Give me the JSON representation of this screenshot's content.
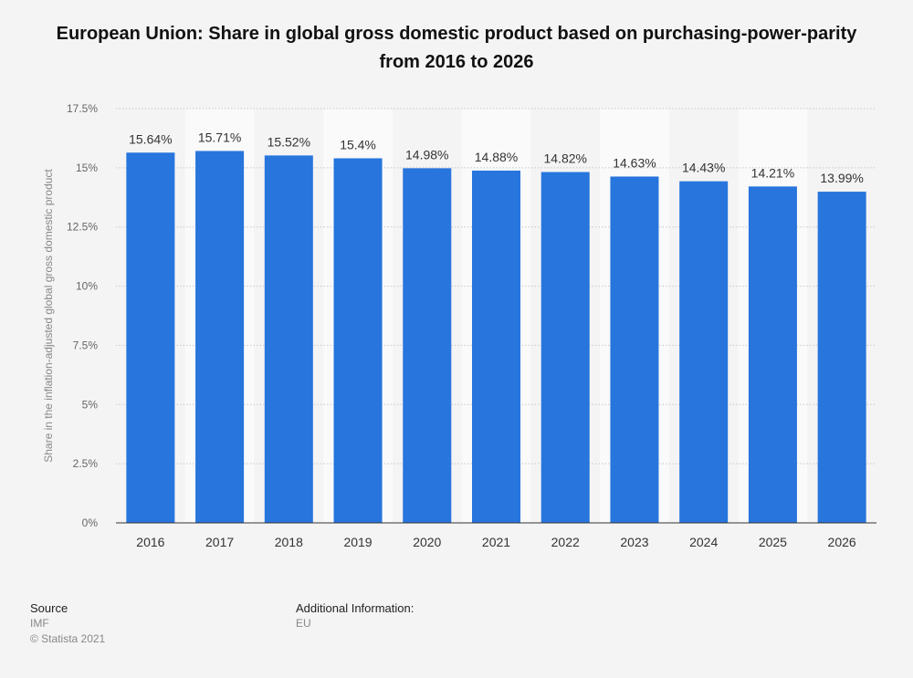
{
  "chart_data": {
    "type": "bar",
    "title": "European Union: Share in global gross domestic product based on purchasing-power-parity from 2016 to 2026",
    "ylabel": "Share in the inflation-adjusted global gross domestic product",
    "xlabel": "",
    "categories": [
      "2016",
      "2017",
      "2018",
      "2019",
      "2020",
      "2021",
      "2022",
      "2023",
      "2024",
      "2025",
      "2026"
    ],
    "values": [
      15.64,
      15.71,
      15.52,
      15.4,
      14.98,
      14.88,
      14.82,
      14.63,
      14.43,
      14.21,
      13.99
    ],
    "value_labels": [
      "15.64%",
      "15.71%",
      "15.52%",
      "15.4%",
      "14.98%",
      "14.88%",
      "14.82%",
      "14.63%",
      "14.43%",
      "14.21%",
      "13.99%"
    ],
    "ylim": [
      0,
      17.5
    ],
    "yticks": [
      0,
      2.5,
      5,
      7.5,
      10,
      12.5,
      15,
      17.5
    ],
    "ytick_labels": [
      "0%",
      "2.5%",
      "5%",
      "7.5%",
      "10%",
      "12.5%",
      "15%",
      "17.5%"
    ],
    "grid": true,
    "bar_color": "#2775dd"
  },
  "footer": {
    "source_heading": "Source",
    "source": "IMF",
    "copyright": "© Statista 2021",
    "info_heading": "Additional Information:",
    "info": "EU"
  }
}
